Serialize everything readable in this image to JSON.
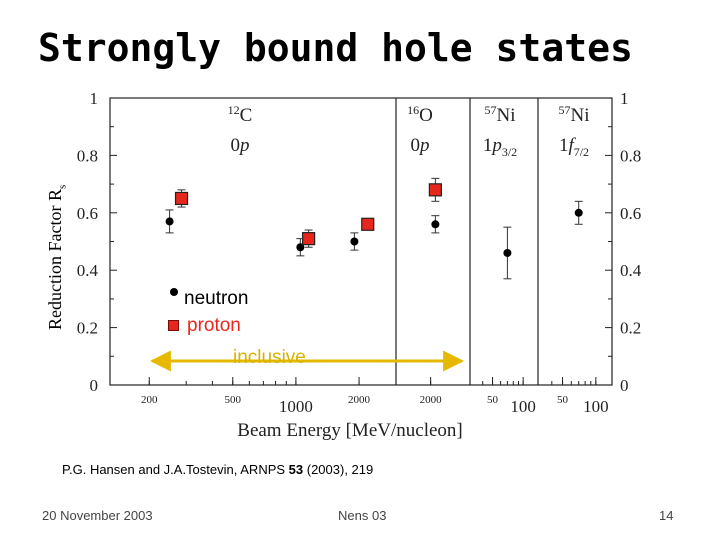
{
  "slide": {
    "title": "Strongly bound hole states",
    "citation_prefix": "P.G. Hansen and J.A.Tostevin, ARNPS ",
    "citation_volume": "53",
    "citation_suffix": " (2003), 219",
    "footer_date": "20 November 2003",
    "footer_center": "Nens 03",
    "page_number": "14"
  },
  "chart_data": {
    "type": "scatter",
    "ylabel": "Reduction Factor R",
    "ylabel_sub": "s",
    "xlabel": "Beam Energy  [MeV/nucleon]",
    "ylim": [
      0,
      1
    ],
    "y_ticks": [
      "0",
      "0.2",
      "0.4",
      "0.6",
      "0.8",
      "1"
    ],
    "panels": [
      {
        "id": "12C",
        "nucleus_mass": "12",
        "nucleus": "C",
        "state": "0p",
        "x_ticks_small": [
          "200",
          "500",
          "2000"
        ],
        "x_ticks_large": [
          "1000"
        ],
        "neutron": [
          {
            "energy": 250,
            "value": 0.57,
            "err": 0.04
          },
          {
            "energy": 1050,
            "value": 0.48,
            "err": 0.03
          },
          {
            "energy": 1900,
            "value": 0.5,
            "err": 0.03
          }
        ],
        "proton": [
          {
            "energy": 285,
            "value": 0.65,
            "err": 0.03
          },
          {
            "energy": 1150,
            "value": 0.51,
            "err": 0.03
          },
          {
            "energy": 2200,
            "value": 0.56,
            "err": 0.02
          }
        ]
      },
      {
        "id": "16O",
        "nucleus_mass": "16",
        "nucleus": "O",
        "state": "0p",
        "x_ticks_small": [
          "2000"
        ],
        "x_ticks_large": [],
        "neutron": [
          {
            "energy": 2100,
            "value": 0.56,
            "err": 0.03
          }
        ],
        "proton": [
          {
            "energy": 2100,
            "value": 0.68,
            "err": 0.04
          }
        ]
      },
      {
        "id": "57Ni_p",
        "nucleus_mass": "57",
        "nucleus": "Ni",
        "state_main": "1p",
        "state_sub": "3/2",
        "x_ticks_small": [
          "50"
        ],
        "x_ticks_large": [
          "100"
        ],
        "neutron": [
          {
            "energy": 70,
            "value": 0.46,
            "err": 0.09
          }
        ],
        "proton": []
      },
      {
        "id": "57Ni_f",
        "nucleus_mass": "57",
        "nucleus": "Ni",
        "state_main": "1f",
        "state_sub": "7/2",
        "x_ticks_small": [
          "50"
        ],
        "x_ticks_large": [
          "100"
        ],
        "neutron": [
          {
            "energy": 70,
            "value": 0.6,
            "err": 0.04
          }
        ],
        "proton": []
      }
    ],
    "legend": [
      {
        "marker": "circle",
        "label": "neutron",
        "color": "#000000"
      },
      {
        "marker": "square",
        "label": "proton",
        "color": "#e8271c"
      }
    ],
    "annotation": {
      "text": "inclusive",
      "color": "#d9b200",
      "span_panels": [
        "12C",
        "16O"
      ]
    }
  }
}
